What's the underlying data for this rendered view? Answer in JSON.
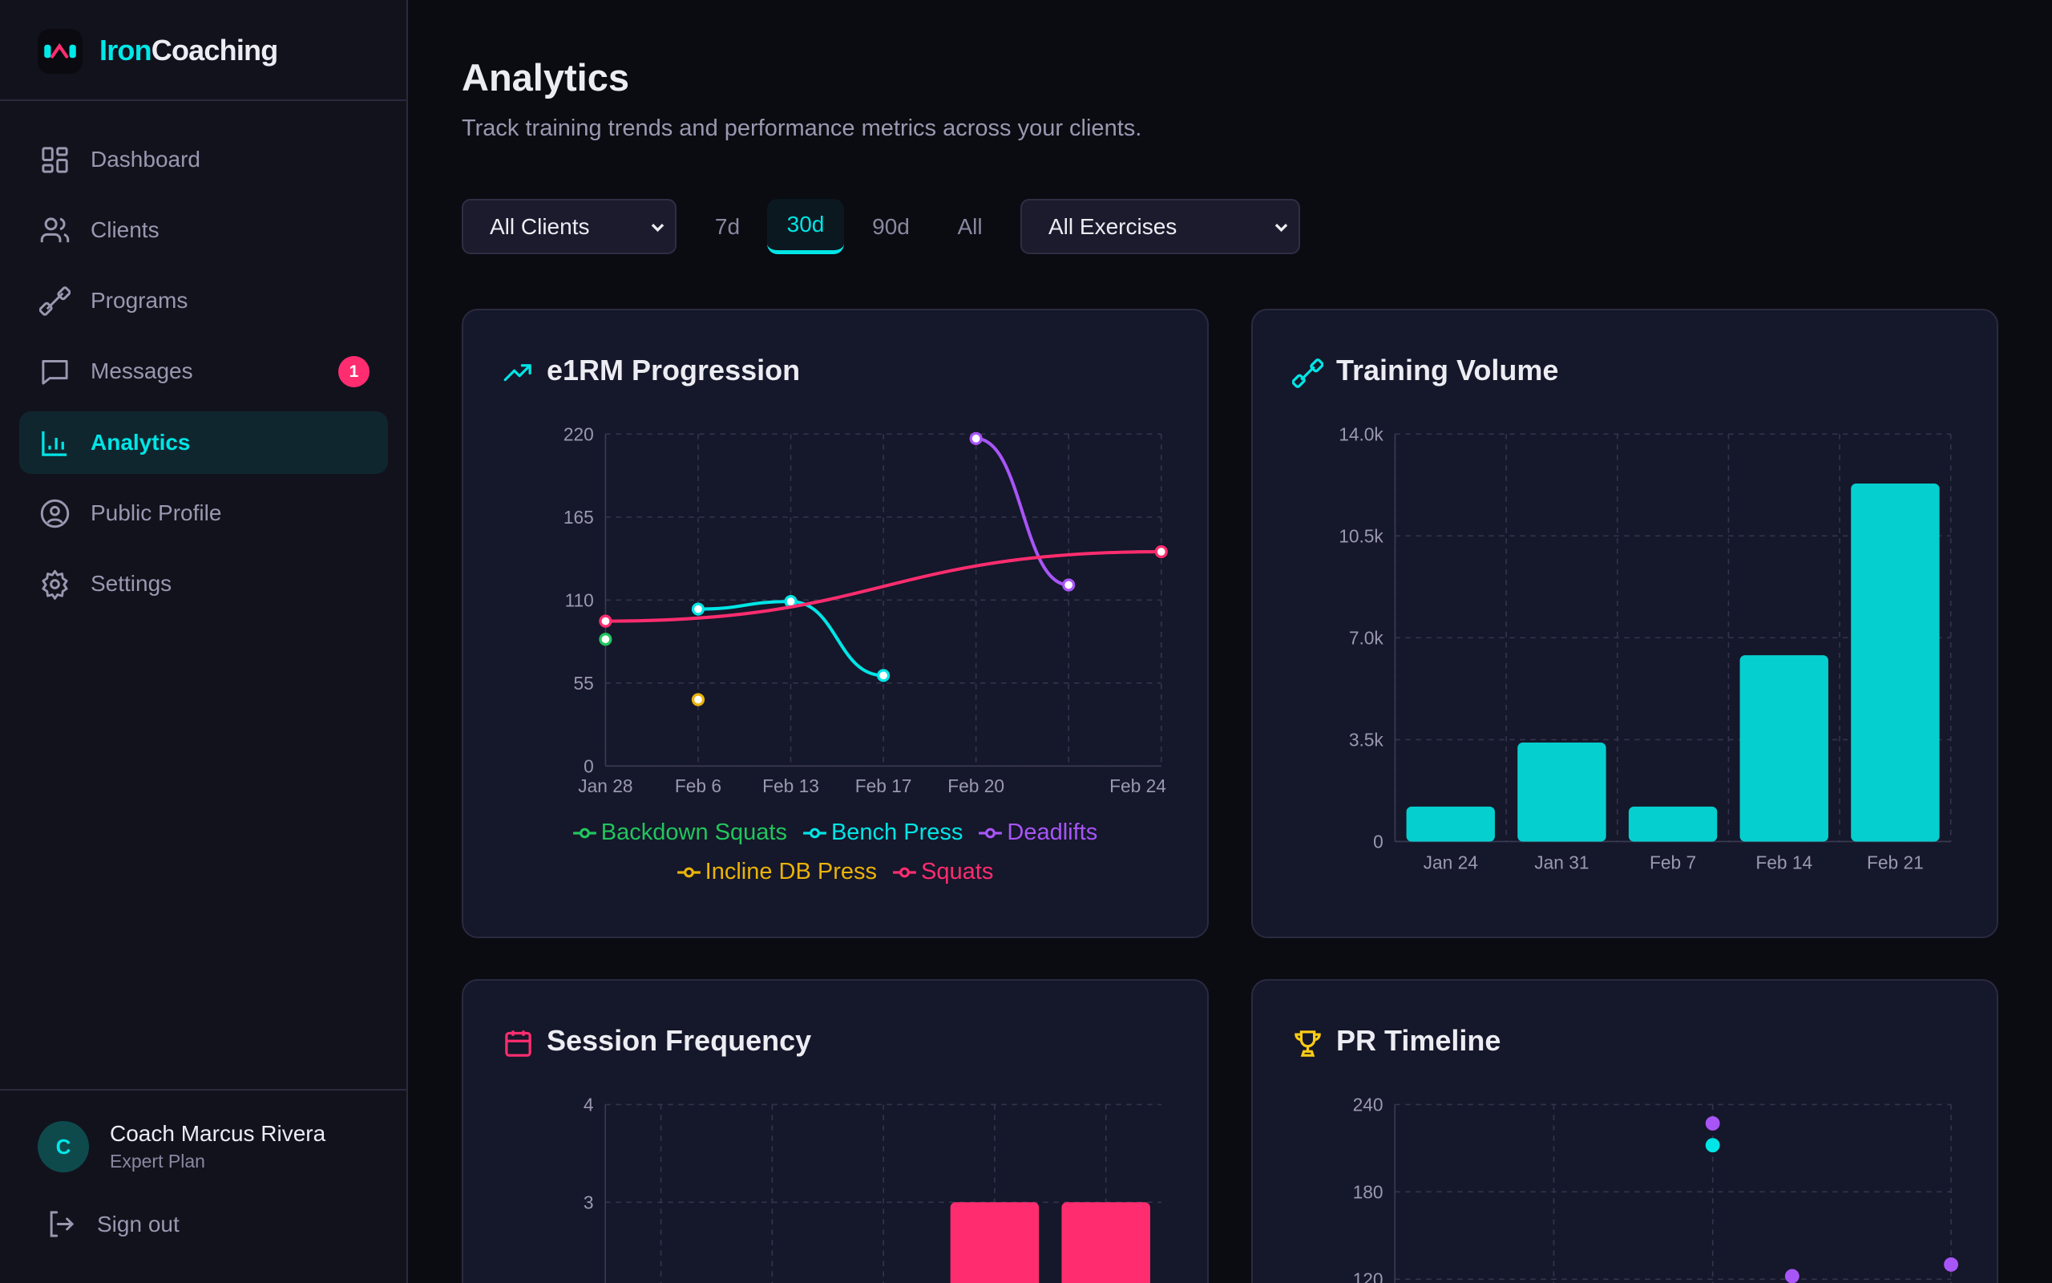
{
  "app": {
    "brand_part1": "Iron",
    "brand_part2": "Coaching"
  },
  "sidebar": {
    "items": [
      {
        "label": "Dashboard",
        "icon": "dashboard-icon"
      },
      {
        "label": "Clients",
        "icon": "users-icon"
      },
      {
        "label": "Programs",
        "icon": "dumbbell-icon"
      },
      {
        "label": "Messages",
        "icon": "message-icon",
        "badge": "1"
      },
      {
        "label": "Analytics",
        "icon": "bar-chart-icon",
        "active": true
      },
      {
        "label": "Public Profile",
        "icon": "user-circle-icon"
      },
      {
        "label": "Settings",
        "icon": "gear-icon"
      }
    ],
    "user": {
      "initial": "C",
      "name": "Coach Marcus Rivera",
      "plan": "Expert Plan"
    },
    "sign_out": "Sign out"
  },
  "header": {
    "title": "Analytics",
    "subtitle": "Track training trends and performance metrics across your clients."
  },
  "filters": {
    "client_select": "All Clients",
    "ranges": [
      "7d",
      "30d",
      "90d",
      "All"
    ],
    "active_range": "30d",
    "exercise_select": "All Exercises"
  },
  "colors": {
    "accent": "#00e5e5",
    "pink": "#ff2d6f",
    "purple": "#a855f7",
    "green": "#22c55e",
    "yellow": "#eab308",
    "bar": "#06cfcf"
  },
  "cards": {
    "e1rm": {
      "title": "e1RM Progression"
    },
    "volume": {
      "title": "Training Volume"
    },
    "frequency": {
      "title": "Session Frequency"
    },
    "pr": {
      "title": "PR Timeline"
    }
  },
  "chart_data": [
    {
      "type": "line",
      "title": "e1RM Progression",
      "categories": [
        "Jan 28",
        "Feb 6",
        "Feb 13",
        "Feb 17",
        "Feb 20",
        "",
        "Feb 24"
      ],
      "yticks": [
        "0",
        "55",
        "110",
        "165",
        "220"
      ],
      "ylim": [
        0,
        220
      ],
      "grid": true,
      "legend": "bottom",
      "series": [
        {
          "name": "Backdown Squats",
          "color": "#22c55e",
          "values": [
            84,
            null,
            null,
            null,
            null,
            null,
            null
          ]
        },
        {
          "name": "Bench Press",
          "color": "#00e5e5",
          "values": [
            null,
            104,
            109,
            60,
            null,
            null,
            null
          ]
        },
        {
          "name": "Deadlifts",
          "color": "#a855f7",
          "values": [
            null,
            null,
            null,
            null,
            217,
            120,
            null
          ]
        },
        {
          "name": "Incline DB Press",
          "color": "#eab308",
          "values": [
            null,
            44,
            null,
            null,
            null,
            null,
            null
          ]
        },
        {
          "name": "Squats",
          "color": "#ff2d6f",
          "values": [
            96,
            null,
            null,
            null,
            null,
            null,
            142
          ]
        }
      ]
    },
    {
      "type": "bar",
      "title": "Training Volume",
      "categories": [
        "Jan 24",
        "Jan 31",
        "Feb 7",
        "Feb 14",
        "Feb 21"
      ],
      "values": [
        1200,
        3400,
        1200,
        6400,
        12300
      ],
      "yticks": [
        "0",
        "3.5k",
        "7.0k",
        "10.5k",
        "14.0k"
      ],
      "ylim": [
        0,
        14000
      ],
      "grid": true
    },
    {
      "type": "bar",
      "title": "Session Frequency",
      "values": [
        null,
        null,
        null,
        3,
        3
      ],
      "yticks": [
        "3",
        "4"
      ],
      "ylim": [
        0,
        4
      ],
      "grid": true
    },
    {
      "type": "scatter",
      "title": "PR Timeline",
      "yticks": [
        "120",
        "180",
        "240"
      ],
      "ylim": [
        0,
        240
      ],
      "grid": true,
      "points": [
        {
          "x": 4,
          "y": 227,
          "color": "#a855f7"
        },
        {
          "x": 4,
          "y": 212,
          "color": "#00e5e5"
        },
        {
          "x": 5,
          "y": 122,
          "color": "#a855f7"
        },
        {
          "x": 7,
          "y": 130,
          "color": "#a855f7"
        }
      ]
    }
  ]
}
